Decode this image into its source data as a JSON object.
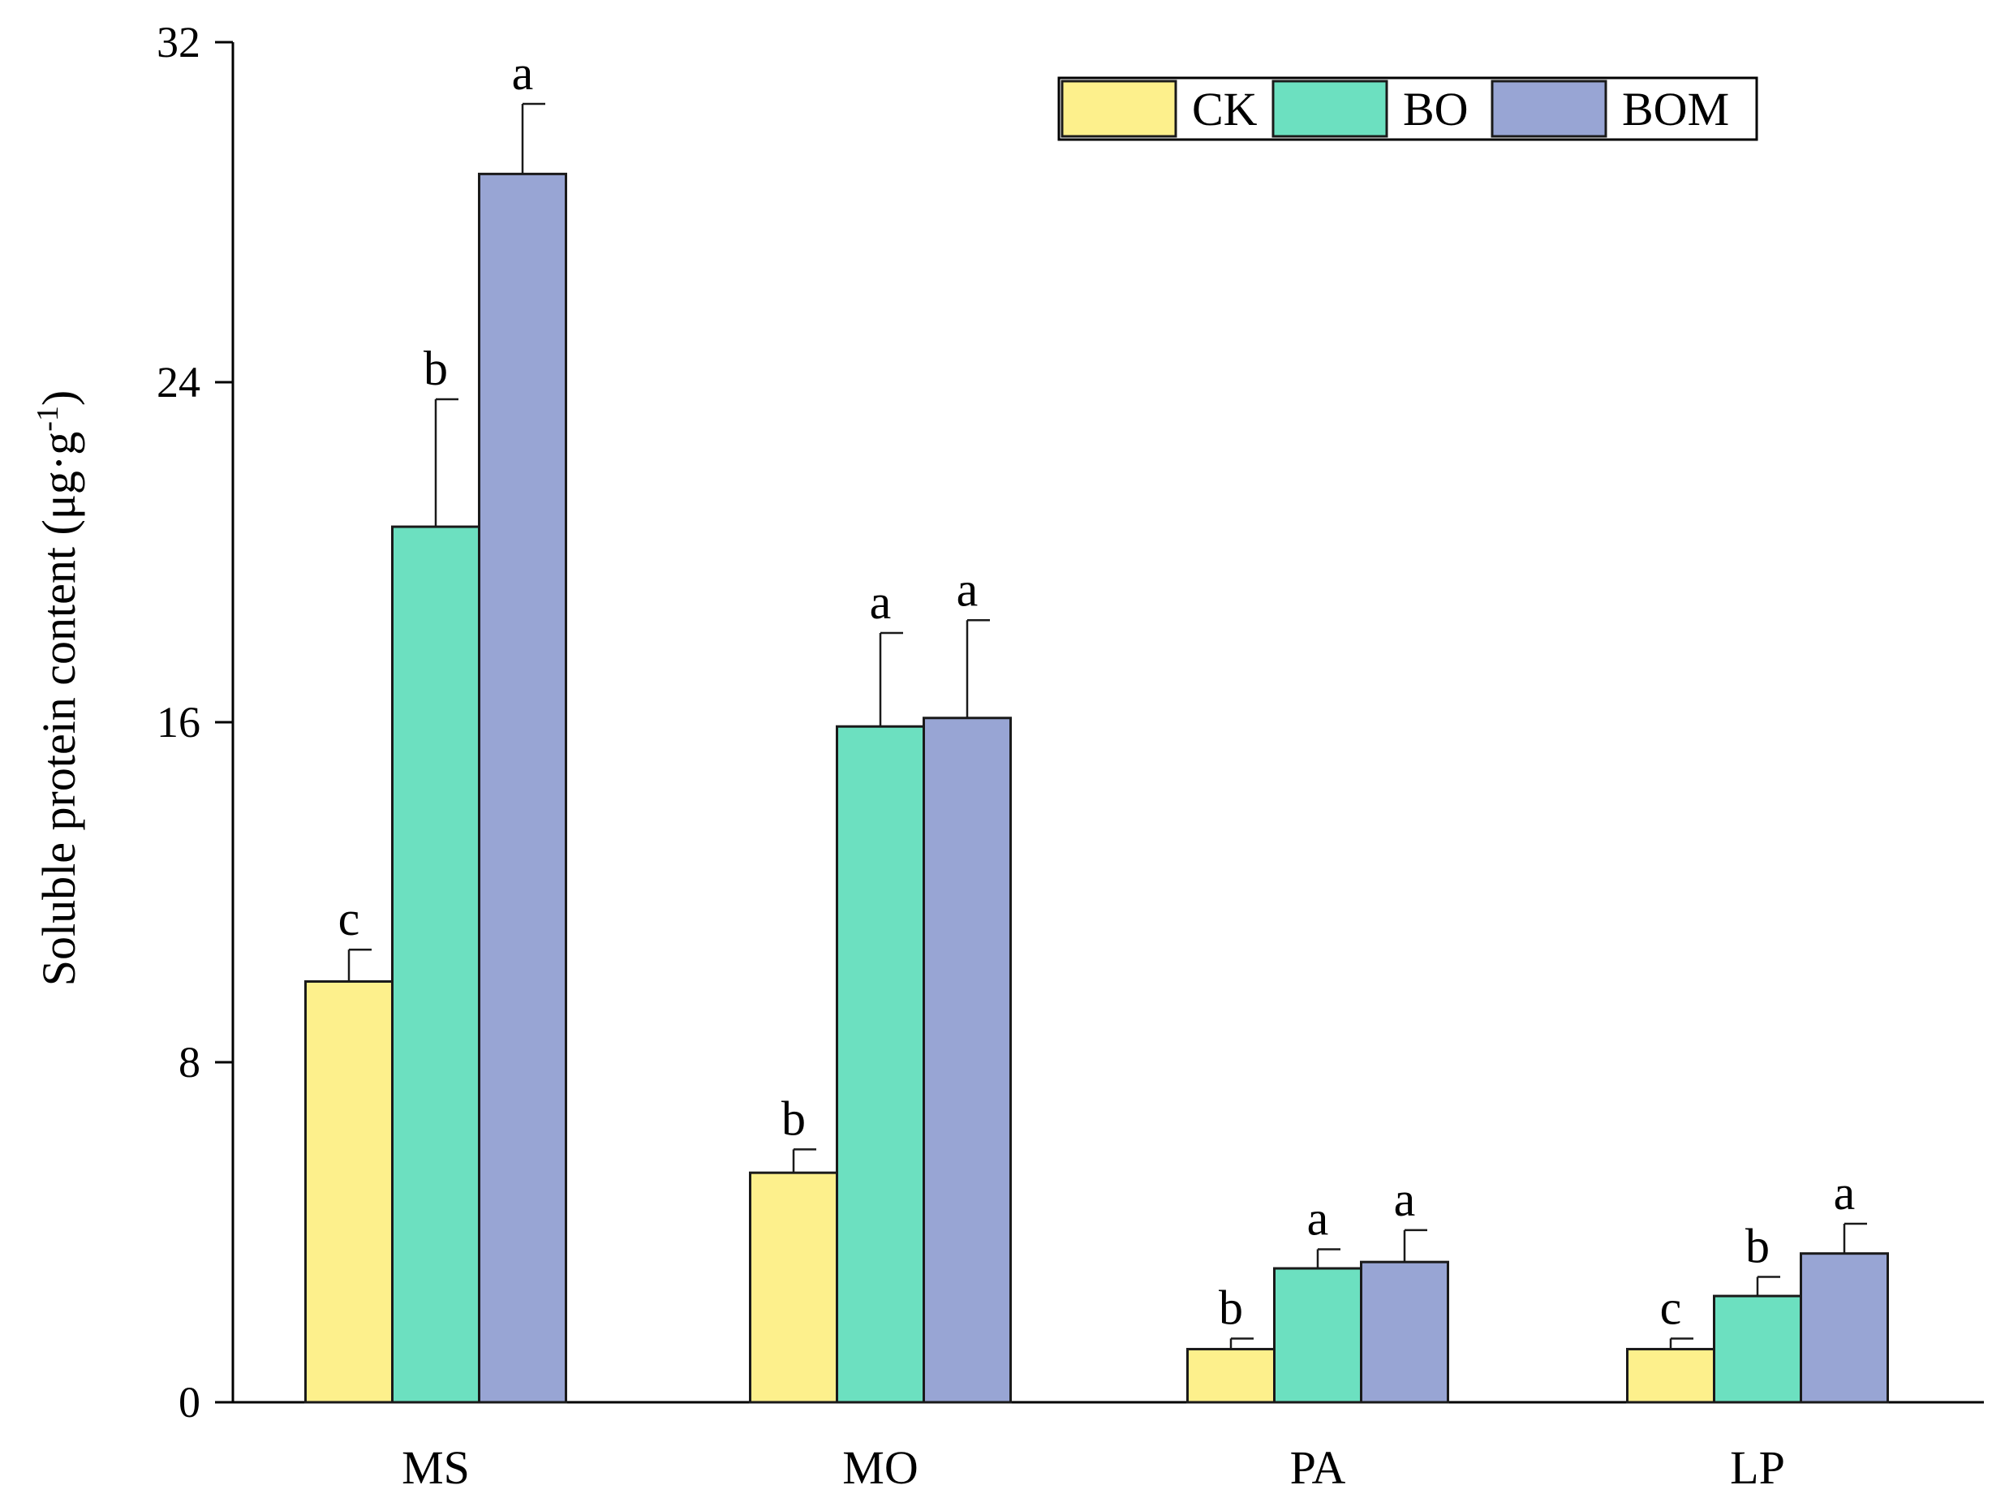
{
  "chart_data": {
    "type": "bar",
    "categories": [
      "MS",
      "MO",
      "PA",
      "LP"
    ],
    "series": [
      {
        "name": "CK",
        "color": "#fdf08c",
        "values": [
          9.9,
          5.4,
          1.25,
          1.25
        ],
        "errors": [
          0.75,
          0.55,
          0.25,
          0.25
        ],
        "letters": [
          "c",
          "b",
          "b",
          "c"
        ]
      },
      {
        "name": "BO",
        "color": "#6ce0c0",
        "values": [
          20.6,
          15.9,
          3.15,
          2.5
        ],
        "errors": [
          3.0,
          2.2,
          0.45,
          0.45
        ],
        "letters": [
          "b",
          "a",
          "a",
          "b"
        ]
      },
      {
        "name": "BOM",
        "color": "#98a5d4",
        "values": [
          28.9,
          16.1,
          3.3,
          3.5
        ],
        "errors": [
          1.65,
          2.3,
          0.75,
          0.7
        ],
        "letters": [
          "a",
          "a",
          "a",
          "a"
        ]
      }
    ],
    "ylabel": "Soluble protein content (μg·g",
    "ylabel_superscript": "-1",
    "ylabel_close": ")",
    "xlabel": "",
    "ylim": [
      0,
      32
    ],
    "yticks": [
      0,
      8,
      16,
      24,
      32
    ],
    "grid": false,
    "legend_position": "top-right"
  }
}
